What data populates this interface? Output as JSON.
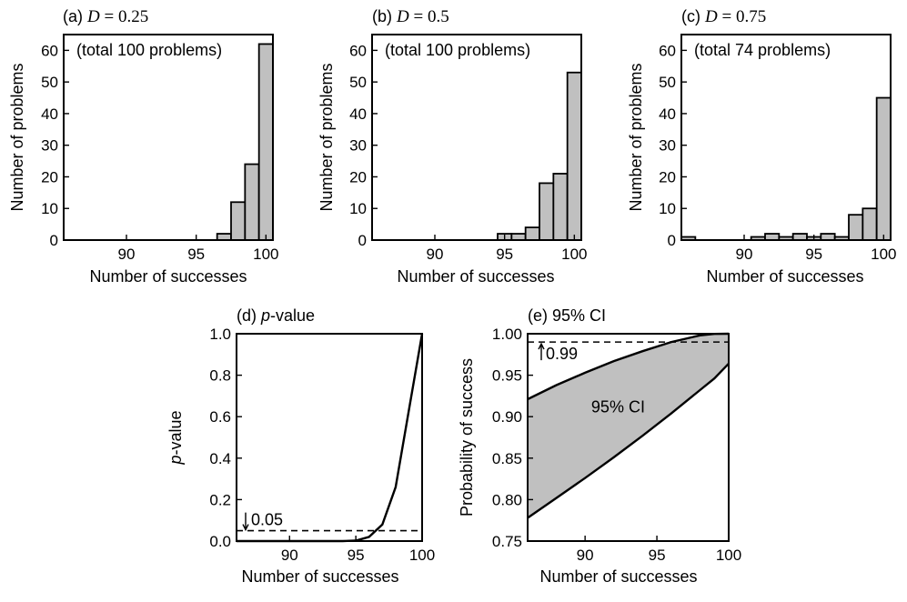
{
  "chart_data": [
    {
      "id": "a",
      "type": "bar",
      "panel_label": "(a)",
      "title_symbol": "D",
      "title_eq": " = ",
      "title_value": "0.25",
      "annotation": "(total 100 problems)",
      "xlabel": "Number of successes",
      "ylabel": "Number of problems",
      "xlim": [
        85.5,
        100.5
      ],
      "ylim": [
        0,
        65
      ],
      "xticks": [
        90,
        95,
        100
      ],
      "yticks": [
        0,
        10,
        20,
        30,
        40,
        50,
        60
      ],
      "x": [
        97,
        98,
        99,
        100
      ],
      "values": [
        2,
        12,
        24,
        62
      ]
    },
    {
      "id": "b",
      "type": "bar",
      "panel_label": "(b)",
      "title_symbol": "D",
      "title_eq": " = ",
      "title_value": "0.5",
      "annotation": "(total 100 problems)",
      "xlabel": "Number of successes",
      "ylabel": "Number of problems",
      "xlim": [
        85.5,
        100.5
      ],
      "ylim": [
        0,
        65
      ],
      "xticks": [
        90,
        95,
        100
      ],
      "yticks": [
        0,
        10,
        20,
        30,
        40,
        50,
        60
      ],
      "x": [
        95,
        96,
        97,
        98,
        99,
        100
      ],
      "values": [
        2,
        2,
        4,
        18,
        21,
        53
      ]
    },
    {
      "id": "c",
      "type": "bar",
      "panel_label": "(c)",
      "title_symbol": "D",
      "title_eq": " = ",
      "title_value": "0.75",
      "annotation": "(total 74 problems)",
      "xlabel": "Number of successes",
      "ylabel": "Number of problems",
      "xlim": [
        85.5,
        100.5
      ],
      "ylim": [
        0,
        65
      ],
      "xticks": [
        90,
        95,
        100
      ],
      "yticks": [
        0,
        10,
        20,
        30,
        40,
        50,
        60
      ],
      "x": [
        86,
        91,
        92,
        93,
        94,
        95,
        96,
        97,
        98,
        99,
        100
      ],
      "values": [
        1,
        1,
        2,
        1,
        2,
        1,
        2,
        1,
        8,
        10,
        45
      ]
    },
    {
      "id": "d",
      "type": "line",
      "panel_label": "(d)",
      "title_italic": "p",
      "title_rest": "-value",
      "xlabel": "Number of successes",
      "ylabel_italic": "p",
      "ylabel_rest": "-value",
      "xlim": [
        86,
        100
      ],
      "ylim": [
        0,
        1
      ],
      "xticks": [
        90,
        95,
        100
      ],
      "yticks": [
        0.0,
        0.2,
        0.4,
        0.6,
        0.8,
        1.0
      ],
      "ytick_labels": [
        "0.0",
        "0.2",
        "0.4",
        "0.6",
        "0.8",
        "1.0"
      ],
      "series": [
        {
          "x": [
            86,
            90,
            94,
            95,
            96,
            97,
            98,
            99,
            100
          ],
          "y": [
            0,
            0,
            0,
            0.002,
            0.02,
            0.08,
            0.26,
            0.63,
            1.0
          ]
        }
      ],
      "reference_line": {
        "y": 0.05,
        "label": "0.05"
      }
    },
    {
      "id": "e",
      "type": "area",
      "panel_label": "(e)",
      "title": "95% CI",
      "xlabel": "Number of successes",
      "ylabel": "Probability of success",
      "xlim": [
        86,
        100
      ],
      "ylim": [
        0.75,
        1.0
      ],
      "xticks": [
        90,
        95,
        100
      ],
      "yticks": [
        0.75,
        0.8,
        0.85,
        0.9,
        0.95,
        1.0
      ],
      "ytick_labels": [
        "0.75",
        "0.80",
        "0.85",
        "0.90",
        "0.95",
        "1.00"
      ],
      "x": [
        86,
        88,
        90,
        92,
        94,
        96,
        97,
        98,
        99,
        100
      ],
      "upper": [
        0.921,
        0.938,
        0.953,
        0.967,
        0.979,
        0.99,
        0.994,
        0.998,
        0.9998,
        1.0
      ],
      "lower": [
        0.778,
        0.802,
        0.826,
        0.851,
        0.877,
        0.904,
        0.918,
        0.932,
        0.946,
        0.964
      ],
      "band_label": "95% CI",
      "reference_line": {
        "y": 0.99,
        "label": "0.99"
      }
    }
  ]
}
